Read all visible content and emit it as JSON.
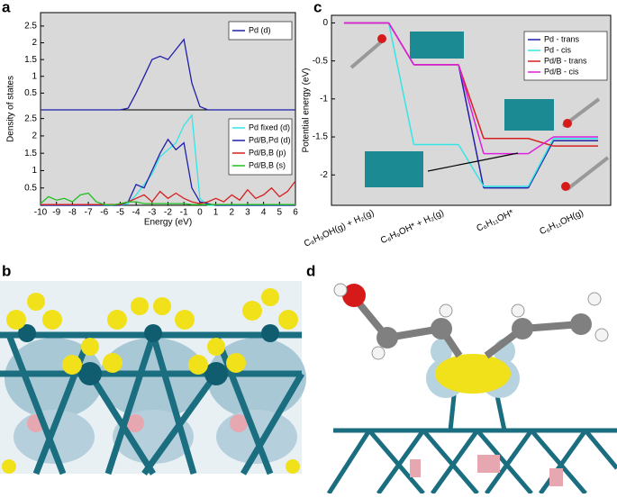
{
  "panel_labels": [
    "a",
    "b",
    "c",
    "d"
  ],
  "chart_data": [
    {
      "type": "line",
      "ylabel": "Density of states",
      "legend": "upper right",
      "x": [
        -10,
        -9.5,
        -9,
        -8.5,
        -8,
        -7.5,
        -7,
        -6.5,
        -6,
        -5.5,
        -5,
        -4.5,
        -4,
        -3.5,
        -3,
        -2.5,
        -2,
        -1.5,
        -1,
        -0.5,
        0,
        0.5,
        1,
        1.5,
        2,
        2.5,
        3,
        3.5,
        4,
        4.5,
        5,
        5.5,
        6
      ],
      "xlim": [
        -10,
        6
      ],
      "ylim": [
        0,
        2.9
      ],
      "yticks": [
        0.5,
        1,
        1.5,
        2,
        2.5
      ],
      "series": [
        {
          "name": "Pd (d)",
          "color": "#1f1fa8",
          "values": [
            0,
            0,
            0,
            0,
            0,
            0,
            0,
            0,
            0,
            0,
            0,
            0.05,
            0.5,
            1.0,
            1.5,
            1.6,
            1.5,
            1.8,
            2.1,
            0.8,
            0.1,
            0,
            0,
            0,
            0,
            0,
            0,
            0,
            0,
            0,
            0,
            0,
            0
          ]
        }
      ]
    },
    {
      "type": "line",
      "xlabel": "Energy (eV)",
      "legend": "upper right",
      "x": [
        -10,
        -9.5,
        -9,
        -8.5,
        -8,
        -7.5,
        -7,
        -6.5,
        -6,
        -5.5,
        -5,
        -4.5,
        -4,
        -3.5,
        -3,
        -2.5,
        -2,
        -1.5,
        -1,
        -0.5,
        0,
        0.5,
        1,
        1.5,
        2,
        2.5,
        3,
        3.5,
        4,
        4.5,
        5,
        5.5,
        6
      ],
      "xlim": [
        -10,
        6
      ],
      "xticks": [
        -10,
        -9,
        -8,
        -7,
        -6,
        -5,
        -4,
        -3,
        -2,
        -1,
        0,
        1,
        2,
        3,
        4,
        5,
        6
      ],
      "ylim": [
        0,
        2.75
      ],
      "yticks": [
        0.5,
        1,
        1.5,
        2,
        2.5
      ],
      "series": [
        {
          "name": "Pd fixed (d)",
          "color": "#33e6e6",
          "values": [
            0,
            0,
            0,
            0,
            0,
            0,
            0,
            0,
            0,
            0,
            0,
            0.05,
            0.3,
            0.6,
            0.9,
            1.4,
            1.6,
            1.8,
            2.3,
            2.6,
            0.2,
            0,
            0,
            0,
            0,
            0,
            0,
            0,
            0,
            0,
            0,
            0,
            0
          ]
        },
        {
          "name": "Pd/B,Pd (d)",
          "color": "#1f1fa8",
          "values": [
            0,
            0,
            0,
            0,
            0,
            0,
            0,
            0,
            0,
            0,
            0,
            0.1,
            0.6,
            0.5,
            1.0,
            1.5,
            1.9,
            1.6,
            1.8,
            0.5,
            0.1,
            0.05,
            0,
            0,
            0,
            0,
            0,
            0,
            0,
            0,
            0,
            0,
            0
          ]
        },
        {
          "name": "Pd/B,B (p)",
          "color": "#d62020",
          "values": [
            0.02,
            0.02,
            0.02,
            0.02,
            0.02,
            0.02,
            0.02,
            0.02,
            0.02,
            0.02,
            0.02,
            0.1,
            0.2,
            0.3,
            0.1,
            0.4,
            0.2,
            0.35,
            0.2,
            0.1,
            0.05,
            0.1,
            0.2,
            0.1,
            0.3,
            0.15,
            0.45,
            0.2,
            0.3,
            0.5,
            0.25,
            0.4,
            0.7
          ]
        },
        {
          "name": "Pd/B,B (s)",
          "color": "#20c020",
          "values": [
            0.05,
            0.25,
            0.15,
            0.2,
            0.1,
            0.3,
            0.35,
            0.1,
            0.02,
            0.01,
            0.05,
            0.1,
            0.1,
            0.05,
            0.05,
            0.05,
            0.05,
            0.05,
            0.05,
            0.02,
            0.02,
            0.02,
            0.02,
            0.02,
            0.02,
            0.02,
            0.02,
            0.02,
            0.02,
            0.02,
            0.02,
            0.02,
            0.02
          ]
        }
      ]
    },
    {
      "type": "step",
      "ylabel": "Potential energy (eV)",
      "legend": "upper right",
      "categories": [
        "C₆H₉OH(g) + H₂(g)",
        "C₆H₉OH* + H₂(g)",
        "C₆H₁₁OH*",
        "C₆H₁₁OH(g)"
      ],
      "ylim": [
        -2.4,
        0.1
      ],
      "yticks": [
        0,
        -0.5,
        -1,
        -1.5,
        -2
      ],
      "series": [
        {
          "name": "Pd - trans",
          "color": "#1f1fa8",
          "values": [
            0,
            -0.55,
            -2.17,
            -1.55
          ]
        },
        {
          "name": "Pd - cis",
          "color": "#33e6e6",
          "values": [
            0,
            -1.6,
            -2.15,
            -1.52
          ]
        },
        {
          "name": "Pd/B - trans",
          "color": "#d62020",
          "values": [
            0,
            -0.55,
            -1.52,
            -1.62
          ]
        },
        {
          "name": "Pd/B - cis",
          "color": "#e020e0",
          "values": [
            0,
            -0.55,
            -1.72,
            -1.5
          ]
        }
      ]
    }
  ]
}
